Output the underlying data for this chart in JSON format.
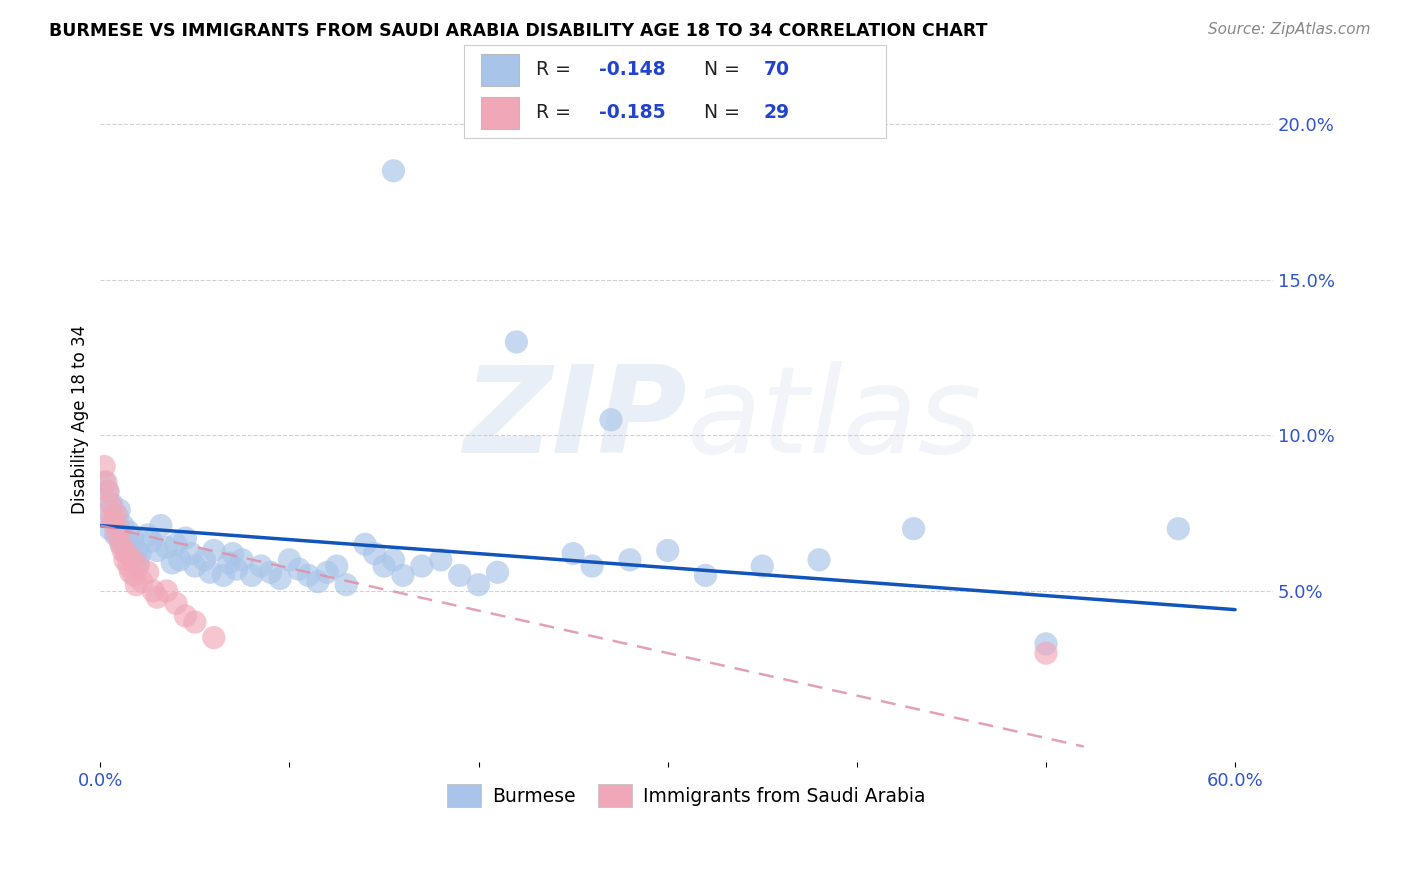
{
  "title": "BURMESE VS IMMIGRANTS FROM SAUDI ARABIA DISABILITY AGE 18 TO 34 CORRELATION CHART",
  "source": "Source: ZipAtlas.com",
  "ylabel": "Disability Age 18 to 34",
  "xlim": [
    0.0,
    0.62
  ],
  "ylim": [
    -0.005,
    0.215
  ],
  "burmese_color": "#a8c4e8",
  "saudi_color": "#f0a8b8",
  "burmese_line_color": "#1155bb",
  "saudi_line_color": "#e090a8",
  "burmese_R": -0.148,
  "burmese_N": 70,
  "saudi_R": -0.185,
  "saudi_N": 29,
  "watermark": "ZIPatlas",
  "legend_label_1": "Burmese",
  "legend_label_2": "Immigrants from Saudi Arabia",
  "burmese_line_x0": 0.0,
  "burmese_line_y0": 0.071,
  "burmese_line_x1": 0.6,
  "burmese_line_y1": 0.044,
  "saudi_line_x0": 0.0,
  "saudi_line_y0": 0.071,
  "saudi_line_x1": 0.52,
  "saudi_line_y1": 0.0,
  "grid_color": "#cccccc",
  "yticks": [
    0.05,
    0.1,
    0.15,
    0.2
  ],
  "ytick_labels": [
    "5.0%",
    "10.0%",
    "15.0%",
    "20.0%"
  ]
}
